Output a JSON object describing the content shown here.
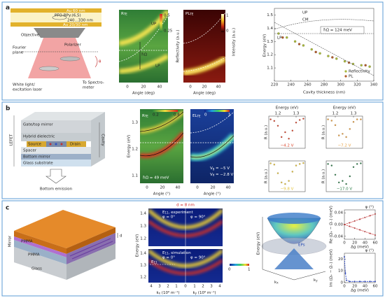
{
  "panel_a": {
    "label": "a",
    "schematic": {
      "top_mirror": "Au 60 nm",
      "active_layer": "PFO-BPy:(6,5)",
      "thickness": "240...330 nm",
      "bottom_mirror": "Au 20/30 nm",
      "objective": "Objective",
      "fourier_plane": [
        "Fourier",
        "plane"
      ],
      "polarizer": "Polarizer",
      "source": [
        "White light/",
        "excitation laser"
      ],
      "detector": [
        "To Spectro-",
        "meter"
      ],
      "angle": "θ"
    },
    "reflectivity_map": {
      "title": {
        "main": "R",
        "sub": "TE"
      },
      "upper_branch": "UP",
      "lower_branch": "LP",
      "splitting": "ħΩ",
      "colorbar_ticks": [
        0.5,
        0.25
      ],
      "colorbar_label": "Reflectivity (a.u.)",
      "xticks": [
        0,
        20,
        40
      ],
      "xlabel": "Angle (deg)"
    },
    "pl_map": {
      "title": {
        "main": "PL",
        "sub": "TE"
      },
      "colorbar_ticks": [
        1,
        0
      ],
      "colorbar_label": "Intensity (a.u.)",
      "xticks": [
        0,
        20,
        40
      ],
      "xlabel": "Angle (deg)"
    },
    "chart_data": {
      "type": "scatter",
      "xlabel": "Cavity thickness (nm)",
      "ylabel": "Energy (eV)",
      "xlim": [
        220,
        340
      ],
      "xticks": [
        220,
        240,
        260,
        280,
        300,
        320,
        340
      ],
      "ylim": [
        1.0,
        1.55
      ],
      "yticks": [
        1.1,
        1.2,
        1.3,
        1.4,
        1.5
      ],
      "annotations": {
        "upper": "UP",
        "lower": "LP",
        "splitting": "ħΩ = 124 meV",
        "cavity_mode": "CM"
      },
      "legend": "lower right",
      "series": [
        {
          "name": "Reflectivity",
          "color": "#a8b83a",
          "x": [
            225,
            235,
            245,
            255,
            265,
            275,
            285,
            295,
            305,
            315,
            325,
            335
          ],
          "values": [
            1.36,
            1.33,
            1.3,
            1.27,
            1.24,
            1.21,
            1.19,
            1.17,
            1.15,
            1.13,
            1.12,
            1.11
          ]
        },
        {
          "name": "PL",
          "color": "#b05a2a",
          "x": [
            230,
            250,
            270,
            290,
            310,
            330
          ],
          "values": [
            1.33,
            1.28,
            1.22,
            1.18,
            1.14,
            1.12
          ]
        }
      ]
    }
  },
  "panel_b": {
    "label": "b",
    "schematic": {
      "device": "LEFET",
      "gate": "Gate/top mirror",
      "dielectric": "Hybrid dielectric",
      "source": "Source",
      "drain": "Drain",
      "spacer": "Spacer",
      "bottom_mirror": "Bottom mirror",
      "substrate": "Glass substrate",
      "cavity": "Cavity",
      "emission": "Bottom emission"
    },
    "reflectivity_map": {
      "title": {
        "main": "R",
        "sub": "TE"
      },
      "colorbar_ticks": [
        0.2,
        0.8
      ],
      "ylabel": "Energy (eV)",
      "yticks": [
        1.3,
        1.2,
        1.1
      ],
      "xticks": [
        0,
        20,
        40
      ],
      "xlabel": "Angle (°)",
      "splitting": "ħΩ = 49 meV"
    },
    "el_map": {
      "title": {
        "main": "EL",
        "sub": "TE"
      },
      "colorbar_ticks": [
        0,
        1
      ],
      "gate_voltage": {
        "main": "V",
        "sub": "g",
        "rest": " = −5 V"
      },
      "drain_voltage": {
        "main": "V",
        "sub": "d",
        "rest": " = −2.8 V"
      },
      "xticks": [
        0,
        20,
        40
      ],
      "xlabel": "Angle (°)"
    },
    "chart_data": {
      "type": "scatter",
      "xlabel": "Energy (eV)",
      "ylabel": "R (a.u.)",
      "x": [
        1.16,
        1.18,
        1.2,
        1.22,
        1.24,
        1.26,
        1.28,
        1.3,
        1.32,
        1.34
      ],
      "xlim": [
        1.15,
        1.35
      ],
      "xticks": [
        1.2,
        1.3
      ],
      "ylim": [
        0,
        1
      ],
      "series": [
        {
          "name": "−4.2 V",
          "color": "#d9432a",
          "values": [
            0.9,
            0.85,
            0.7,
            0.35,
            0.5,
            0.3,
            0.55,
            0.8,
            0.88,
            0.92
          ]
        },
        {
          "name": "−7.2 V",
          "color": "#e8a040",
          "values": [
            0.9,
            0.86,
            0.72,
            0.4,
            0.45,
            0.35,
            0.6,
            0.82,
            0.9,
            0.9
          ]
        },
        {
          "name": "−9.8 V",
          "color": "#e3c23a",
          "values": [
            0.92,
            0.88,
            0.6,
            0.3,
            0.25,
            0.35,
            0.65,
            0.85,
            0.9,
            0.93
          ]
        },
        {
          "name": "−17.0 V",
          "color": "#2e7d4a",
          "values": [
            0.9,
            0.85,
            0.55,
            0.3,
            0.35,
            0.25,
            0.5,
            0.8,
            0.9,
            0.92
          ]
        }
      ]
    }
  },
  "panel_c": {
    "label": "c",
    "schematic": {
      "mirror": "Mirror",
      "upper_pmma": "PMMA",
      "lower_pmma": "PMMA",
      "substrate": "Glass",
      "thickness": "d"
    },
    "maps": {
      "thickness": "d = 8 nm",
      "experiment": {
        "main": "E",
        "sub": "11",
        "rest": ", experiment"
      },
      "simulation": {
        "main": "E",
        "sub": "11",
        "rest": ", simulation"
      },
      "angle_x": "φ = 0°",
      "angle_y": "φ = 90°",
      "mode": {
        "main": "E",
        "sub": "11"
      },
      "ylabel": "Energy (eV)",
      "yticks": [
        1.4,
        1.3,
        1.2
      ],
      "kx_ticks": [
        4,
        3,
        2,
        1,
        0
      ],
      "ky_ticks": [
        1,
        2,
        3,
        4
      ],
      "kx_label": {
        "main": "k",
        "sub": "x",
        "rest": " (10⁶ m⁻¹)"
      },
      "ky_label": {
        "main": "k",
        "sub": "y",
        "rest": " (10⁶ m⁻¹)"
      },
      "colorbar_ticks": [
        0,
        1
      ]
    },
    "surface": {
      "zlabel": "Energy (eV)",
      "xlabel": {
        "main": "k",
        "sub": "x"
      },
      "ylabel": {
        "main": "k",
        "sub": "y"
      },
      "exceptional_points": "EPs"
    },
    "re_plot": {
      "type": "line",
      "ylabel": "Re (Ω₊ − Ω₋) (meV)",
      "xlabel": "Δg (meV)",
      "top_label": "φ (°)",
      "x": [
        0,
        10,
        20,
        30,
        40,
        50,
        60
      ],
      "xlim": [
        0,
        60
      ],
      "xticks": [
        0,
        20,
        40,
        60
      ],
      "ylim": [
        -0.05,
        0.05
      ],
      "yticks": [
        -0.04,
        {
          "value": 0,
          "label": "0.00"
        },
        0.04
      ],
      "series": [
        {
          "color": "#d03030",
          "values": [
            0,
            0.006,
            0.012,
            0.018,
            0.024,
            0.03,
            0.036
          ]
        },
        {
          "color": "#d03030",
          "values": [
            0,
            -0.006,
            -0.012,
            -0.018,
            -0.024,
            -0.03,
            -0.036
          ]
        }
      ]
    },
    "im_plot": {
      "type": "line",
      "ylabel": "Im (Ω₊ − Ω₋) (meV)",
      "xlabel": "Δg (meV)",
      "top_label": "φ (°)",
      "x": [
        0,
        2,
        4,
        10,
        20,
        30,
        40,
        50,
        60
      ],
      "xlim": [
        0,
        60
      ],
      "xticks": [
        0,
        20,
        40,
        60
      ],
      "ylim": [
        0,
        25
      ],
      "yticks": [
        0,
        10,
        20
      ],
      "series": [
        {
          "color": "#2040d0",
          "values": [
            22,
            8,
            2,
            1,
            1,
            1,
            1,
            1,
            1
          ]
        }
      ]
    }
  }
}
